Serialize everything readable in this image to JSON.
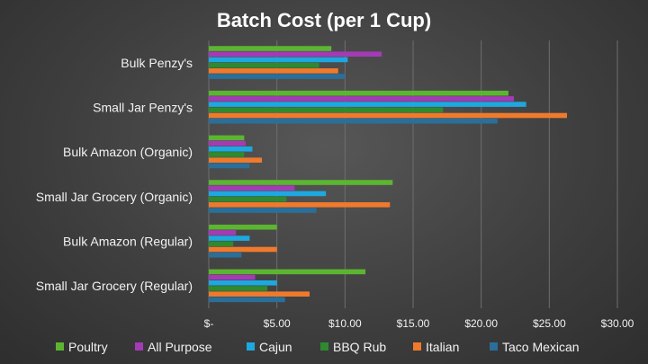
{
  "chart_data": {
    "type": "bar",
    "orientation": "horizontal",
    "title": "Batch Cost (per 1 Cup)",
    "categories": [
      "Bulk Penzy's",
      "Small Jar Penzy's",
      "Bulk Amazon (Organic)",
      "Small Jar Grocery (Organic)",
      "Bulk Amazon (Regular)",
      "Small Jar Grocery (Regular)"
    ],
    "series": [
      {
        "name": "Poultry",
        "color": "#5cb531",
        "values": [
          9.0,
          22.0,
          2.6,
          13.5,
          5.0,
          11.5
        ]
      },
      {
        "name": "All Purpose",
        "color": "#a43bb5",
        "values": [
          12.7,
          22.4,
          2.7,
          6.3,
          2.0,
          3.4
        ]
      },
      {
        "name": "Cajun",
        "color": "#1ea8e0",
        "values": [
          10.2,
          23.3,
          3.2,
          8.6,
          3.0,
          5.0
        ]
      },
      {
        "name": "BBQ Rub",
        "color": "#2e8a2e",
        "values": [
          8.1,
          17.2,
          2.6,
          5.7,
          1.8,
          4.3
        ]
      },
      {
        "name": "Italian",
        "color": "#f07a2c",
        "values": [
          9.5,
          26.3,
          3.9,
          13.3,
          5.0,
          7.4
        ]
      },
      {
        "name": "Taco Mexican",
        "color": "#2a6f9a",
        "values": [
          10.0,
          21.2,
          3.0,
          7.9,
          2.4,
          5.6
        ]
      }
    ],
    "xlim": [
      0,
      30
    ],
    "x_ticks": [
      0,
      5,
      10,
      15,
      20,
      25,
      30
    ],
    "x_tick_labels": [
      "$-",
      "$5.00",
      "$10.00",
      "$15.00",
      "$20.00",
      "$25.00",
      "$30.00"
    ],
    "grid": true,
    "legend_position": "bottom"
  }
}
